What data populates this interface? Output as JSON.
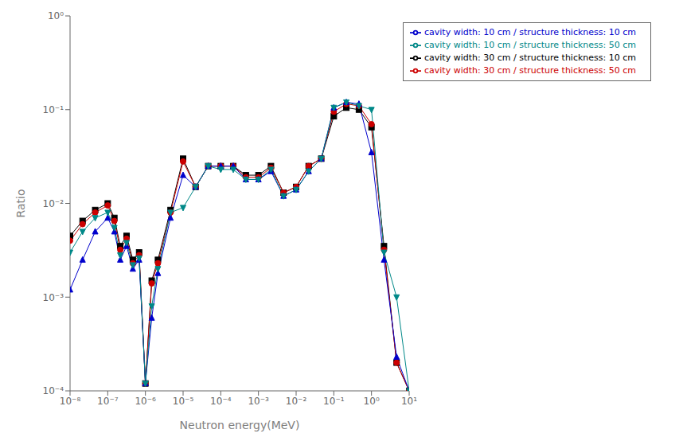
{
  "chart_data": {
    "type": "line",
    "xlabel": "Neutron energy(MeV)",
    "ylabel": "Ratio",
    "log": true,
    "grid": false,
    "legend": "upper right",
    "xlim": [
      1e-08,
      10.0
    ],
    "ylim": [
      0.0001,
      1.0
    ],
    "xticks": [
      {
        "value": 1e-08,
        "label": "10⁻⁸"
      },
      {
        "value": 1e-07,
        "label": "10⁻⁷"
      },
      {
        "value": 1e-06,
        "label": "10⁻⁶"
      },
      {
        "value": 1e-05,
        "label": "10⁻⁵"
      },
      {
        "value": 0.0001,
        "label": "10⁻⁴"
      },
      {
        "value": 0.001,
        "label": "10⁻³"
      },
      {
        "value": 0.01,
        "label": "10⁻²"
      },
      {
        "value": 0.1,
        "label": "10⁻¹"
      },
      {
        "value": 1.0,
        "label": "10⁰"
      },
      {
        "value": 10.0,
        "label": "10¹"
      }
    ],
    "yticks": [
      {
        "value": 0.0001,
        "label": "10⁻⁴"
      },
      {
        "value": 0.001,
        "label": "10⁻³"
      },
      {
        "value": 0.01,
        "label": "10⁻²"
      },
      {
        "value": 0.1,
        "label": "10⁻¹"
      },
      {
        "value": 1.0,
        "label": "10⁰"
      }
    ],
    "x": [
      1e-08,
      2.15e-08,
      4.65e-08,
      1e-07,
      1.5e-07,
      2.15e-07,
      3.16e-07,
      4.64e-07,
      6.81e-07,
      1e-06,
      1.47e-06,
      2.15e-06,
      4.64e-06,
      1e-05,
      2.15e-05,
      4.64e-05,
      0.0001,
      0.000215,
      0.000464,
      0.001,
      0.00215,
      0.00464,
      0.01,
      0.0215,
      0.0464,
      0.1,
      0.215,
      0.464,
      1.0,
      2.15,
      4.64,
      10.0
    ],
    "series": [
      {
        "name": "cavity width: 30 cm / structure thickness: 10 cm",
        "color": "#000000",
        "marker": "square",
        "values": [
          0.0045,
          0.0065,
          0.0085,
          0.01,
          0.007,
          0.0035,
          0.0045,
          0.0025,
          0.003,
          0.00012,
          0.0015,
          0.0025,
          0.0085,
          0.03,
          0.015,
          0.025,
          0.025,
          0.025,
          0.02,
          0.02,
          0.025,
          0.013,
          0.015,
          0.025,
          0.03,
          0.085,
          0.105,
          0.1,
          0.065,
          0.0035,
          0.0002,
          0.0001
        ]
      },
      {
        "name": "cavity width: 30 cm / structure thickness: 50 cm",
        "color": "#cc0000",
        "marker": "circle",
        "values": [
          0.004,
          0.006,
          0.008,
          0.0095,
          0.0065,
          0.0032,
          0.0042,
          0.0023,
          0.0028,
          0.00012,
          0.0014,
          0.0023,
          0.008,
          0.028,
          0.015,
          0.025,
          0.025,
          0.025,
          0.019,
          0.019,
          0.024,
          0.013,
          0.015,
          0.025,
          0.03,
          0.095,
          0.115,
          0.11,
          0.07,
          0.0032,
          0.0002,
          0.0001
        ]
      },
      {
        "name": "cavity width: 10 cm / structure thickness: 10 cm",
        "color": "#0000cc",
        "marker": "triangle-up",
        "values": [
          0.0012,
          0.0025,
          0.005,
          0.007,
          0.005,
          0.0025,
          0.0035,
          0.002,
          0.0025,
          0.00012,
          0.0006,
          0.0018,
          0.007,
          0.02,
          0.015,
          0.025,
          0.025,
          0.025,
          0.018,
          0.018,
          0.022,
          0.012,
          0.014,
          0.022,
          0.03,
          0.105,
          0.12,
          0.115,
          0.035,
          0.0025,
          0.00023,
          0.0001
        ]
      },
      {
        "name": "cavity width: 10 cm / structure thickness: 50 cm",
        "color": "#008888",
        "marker": "triangle-down",
        "values": [
          0.003,
          0.005,
          0.007,
          0.008,
          0.0055,
          0.0028,
          0.0038,
          0.0022,
          0.0026,
          0.00012,
          0.0008,
          0.002,
          0.008,
          0.009,
          0.015,
          0.025,
          0.023,
          0.023,
          0.018,
          0.018,
          0.023,
          0.012,
          0.014,
          0.022,
          0.03,
          0.105,
          0.12,
          0.11,
          0.1,
          0.003,
          0.001,
          0.0001
        ]
      }
    ]
  }
}
